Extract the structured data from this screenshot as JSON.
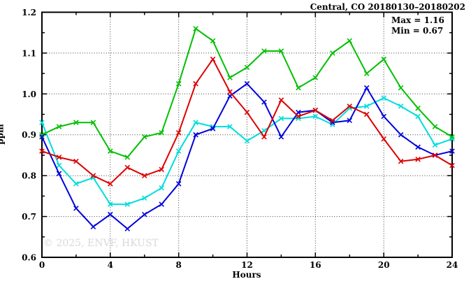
{
  "title": "Central, CO 20180130–20180202",
  "annotation": {
    "max_label": "Max = 1.16",
    "min_label": "Min = 0.67"
  },
  "watermark": "© 2025, ENVF, HKUST",
  "chart_data": {
    "type": "line",
    "title": "Central, CO 20180130–20180202",
    "xlabel": "Hours",
    "ylabel": "ppm",
    "xlim": [
      0,
      24
    ],
    "ylim": [
      0.6,
      1.2
    ],
    "grid": "dotted major gridlines",
    "legend": "none",
    "max_value": 1.16,
    "min_value": 0.67,
    "x_major_ticks": [
      0,
      4,
      8,
      12,
      16,
      20,
      24
    ],
    "x_tick_labels": [
      "0",
      "4",
      "8",
      "12",
      "16",
      "20",
      "24"
    ],
    "x_minor_ticks": [
      2,
      6,
      10,
      14,
      18,
      22
    ],
    "y_major_ticks": [
      0.6,
      0.7,
      0.8,
      0.9,
      1.0,
      1.1,
      1.2
    ],
    "y_tick_labels": [
      "0.6",
      "0.7",
      "0.8",
      "0.9",
      "1.0",
      "1.1",
      "1.2"
    ],
    "y_minor_ticks": [
      0.65,
      0.75,
      0.85,
      0.95,
      1.05,
      1.15
    ],
    "x": [
      0,
      1,
      2,
      3,
      4,
      5,
      6,
      7,
      8,
      9,
      10,
      11,
      12,
      13,
      14,
      15,
      16,
      17,
      18,
      19,
      20,
      21,
      22,
      23,
      24
    ],
    "series": [
      {
        "name": "cyan",
        "color": "#00dddd",
        "values": [
          0.93,
          0.825,
          0.78,
          0.795,
          0.73,
          0.73,
          0.745,
          0.77,
          0.86,
          0.93,
          0.92,
          0.92,
          0.885,
          0.91,
          0.94,
          0.94,
          0.945,
          0.925,
          0.965,
          0.97,
          0.99,
          0.97,
          0.945,
          0.875,
          0.89
        ]
      },
      {
        "name": "green",
        "color": "#00c000",
        "values": [
          0.9,
          0.92,
          0.93,
          0.93,
          0.86,
          0.845,
          0.895,
          0.905,
          1.025,
          1.16,
          1.13,
          1.04,
          1.065,
          1.105,
          1.105,
          1.015,
          1.04,
          1.1,
          1.13,
          1.05,
          1.085,
          1.015,
          0.965,
          0.92,
          0.895
        ]
      },
      {
        "name": "blue",
        "color": "#0000dd",
        "values": [
          0.895,
          0.805,
          0.72,
          0.675,
          0.705,
          0.67,
          0.705,
          0.73,
          0.78,
          0.9,
          0.915,
          0.995,
          1.025,
          0.98,
          0.895,
          0.955,
          0.96,
          0.93,
          0.935,
          1.015,
          0.945,
          0.9,
          0.87,
          0.85,
          0.86
        ]
      },
      {
        "name": "red",
        "color": "#dd0000",
        "values": [
          0.86,
          0.845,
          0.835,
          0.8,
          0.78,
          0.82,
          0.8,
          0.815,
          0.905,
          1.025,
          1.085,
          1.005,
          0.955,
          0.895,
          0.985,
          0.945,
          0.96,
          0.935,
          0.97,
          0.95,
          0.89,
          0.835,
          0.84,
          0.85,
          0.825
        ]
      }
    ]
  }
}
